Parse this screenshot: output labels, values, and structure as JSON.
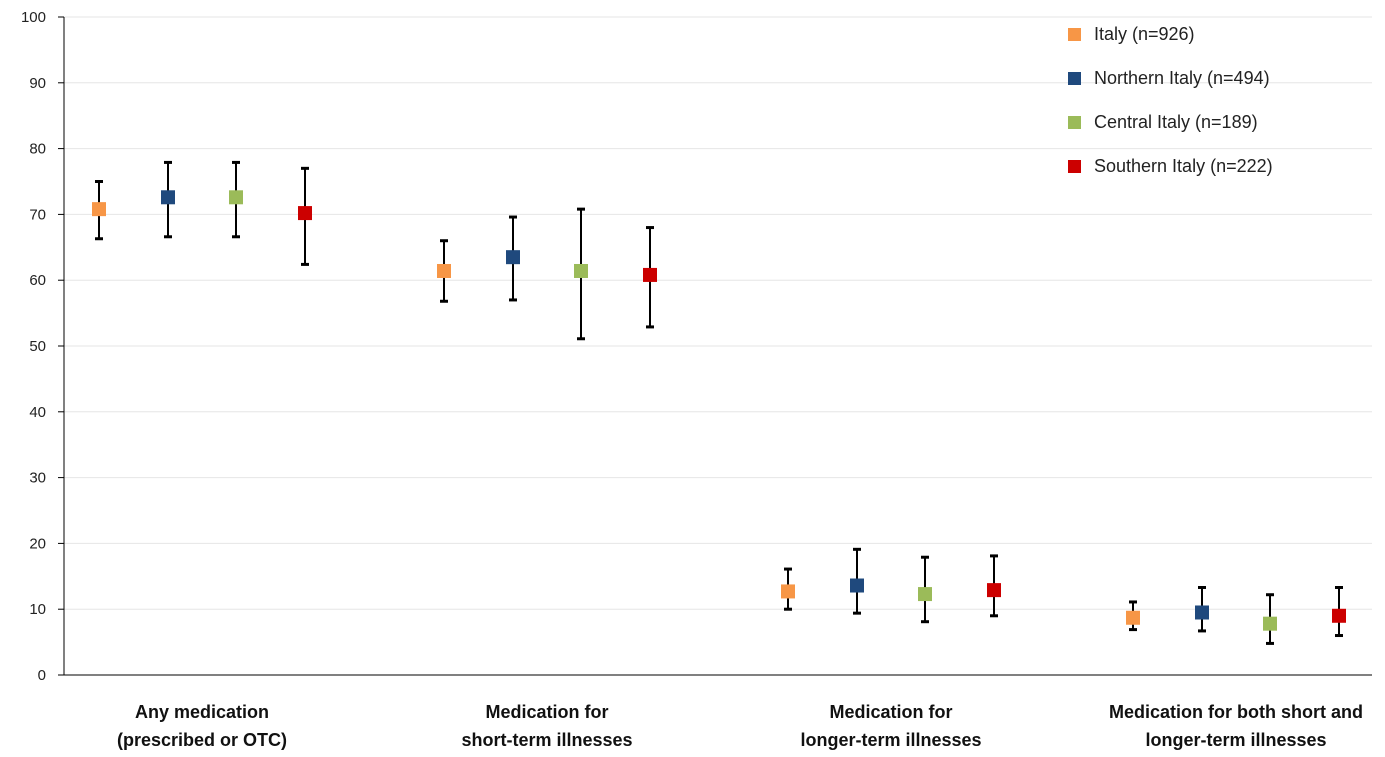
{
  "chart_data": {
    "type": "scatter",
    "title": "",
    "xlabel": "",
    "ylabel": "",
    "ylim": [
      0,
      100
    ],
    "yticks": [
      0,
      10,
      20,
      30,
      40,
      50,
      60,
      70,
      80,
      90,
      100
    ],
    "grid": true,
    "legend_position": "top-right",
    "categories": [
      [
        "Any medication",
        "(prescribed or OTC)"
      ],
      [
        "Medication for",
        "short-term illnesses"
      ],
      [
        "Medication for",
        "longer-term illnesses"
      ],
      [
        "Medication for both short and",
        "longer-term illnesses"
      ]
    ],
    "series": [
      {
        "name": "Italy (n=926)",
        "color": "#F79646",
        "values": [
          70.8,
          61.4,
          12.7,
          8.7
        ],
        "lower": [
          66.3,
          56.8,
          10.0,
          6.9
        ],
        "upper": [
          75.0,
          66.0,
          16.1,
          11.1
        ]
      },
      {
        "name": "Northern Italy (n=494)",
        "color": "#1F497D",
        "values": [
          72.6,
          63.5,
          13.6,
          9.5
        ],
        "lower": [
          66.6,
          57.0,
          9.4,
          6.7
        ],
        "upper": [
          77.9,
          69.6,
          19.1,
          13.3
        ]
      },
      {
        "name": "Central Italy (n=189)",
        "color": "#9BBB59",
        "values": [
          72.6,
          61.4,
          12.3,
          7.8
        ],
        "lower": [
          66.6,
          51.1,
          8.1,
          4.8
        ],
        "upper": [
          77.9,
          70.8,
          17.9,
          12.2
        ]
      },
      {
        "name": "Southern Italy (n=222)",
        "color": "#CC0000",
        "values": [
          70.2,
          60.8,
          12.9,
          9.0
        ],
        "lower": [
          62.4,
          52.9,
          9.0,
          6.0
        ],
        "upper": [
          77.0,
          68.0,
          18.1,
          13.3
        ]
      }
    ]
  }
}
